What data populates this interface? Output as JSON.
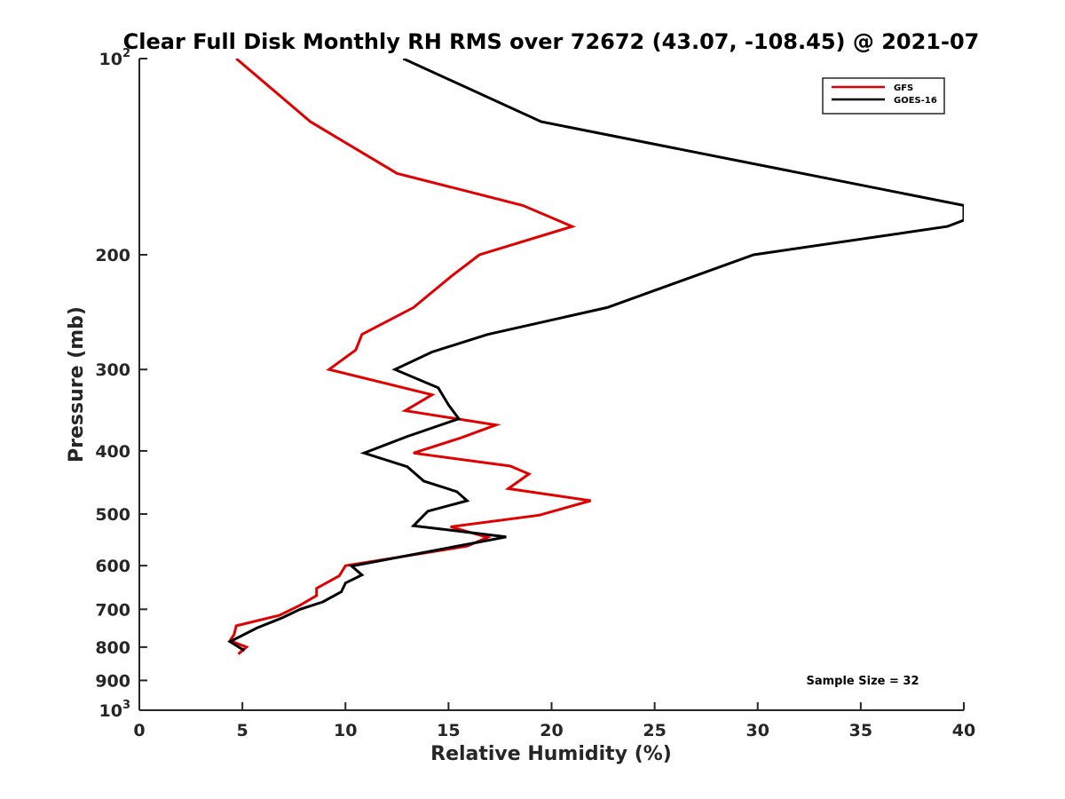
{
  "chart_data": {
    "type": "line",
    "title": "Clear Full Disk Monthly RH RMS over 72672 (43.07, -108.45) @ 2021-07",
    "xlabel": "Relative Humidity (%)",
    "ylabel": "Pressure (mb)",
    "xlim": [
      0,
      40
    ],
    "ylim": [
      100,
      1000
    ],
    "y_scale": "log",
    "y_reversed": true,
    "x_ticks": [
      0,
      5,
      10,
      15,
      20,
      25,
      30,
      35,
      40
    ],
    "x_tick_labels": [
      "0",
      "5",
      "10",
      "15",
      "20",
      "25",
      "30",
      "35",
      "40"
    ],
    "y_ticks": [
      100,
      200,
      300,
      400,
      500,
      600,
      700,
      800,
      900,
      1000
    ],
    "y_tick_labels": [
      {
        "base": "10",
        "sup": "2"
      },
      {
        "base": "200"
      },
      {
        "base": "300"
      },
      {
        "base": "400"
      },
      {
        "base": "500"
      },
      {
        "base": "600"
      },
      {
        "base": "700"
      },
      {
        "base": "800"
      },
      {
        "base": "900"
      },
      {
        "base": "10",
        "sup": "3"
      }
    ],
    "legend_position": "top-right",
    "annotation": "Sample Size = 32",
    "series": [
      {
        "name": "GFS",
        "color": "#e00000",
        "points": [
          [
            4.7,
            100
          ],
          [
            8.3,
            125
          ],
          [
            12.5,
            150
          ],
          [
            18.6,
            168
          ],
          [
            21.0,
            181
          ],
          [
            16.5,
            200
          ],
          [
            15.2,
            215
          ],
          [
            13.3,
            241
          ],
          [
            10.8,
            265
          ],
          [
            10.5,
            280
          ],
          [
            9.2,
            300
          ],
          [
            14.2,
            328
          ],
          [
            12.9,
            347
          ],
          [
            17.3,
            365
          ],
          [
            15.6,
            382
          ],
          [
            13.3,
            403
          ],
          [
            18.0,
            422
          ],
          [
            18.9,
            434
          ],
          [
            17.9,
            457
          ],
          [
            21.9,
            477
          ],
          [
            19.4,
            502
          ],
          [
            15.1,
            523
          ],
          [
            16.9,
            543
          ],
          [
            15.9,
            560
          ],
          [
            10.0,
            600
          ],
          [
            9.7,
            622
          ],
          [
            8.6,
            650
          ],
          [
            8.6,
            667
          ],
          [
            7.8,
            690
          ],
          [
            6.8,
            715
          ],
          [
            4.7,
            742
          ],
          [
            4.6,
            765
          ],
          [
            4.4,
            782
          ],
          [
            5.2,
            800
          ],
          [
            4.8,
            820
          ]
        ]
      },
      {
        "name": "GOES-16",
        "color": "#000000",
        "points": [
          [
            12.8,
            100
          ],
          [
            19.5,
            125
          ],
          [
            40.0,
            168
          ],
          [
            40.0,
            177
          ],
          [
            39.2,
            181
          ],
          [
            29.8,
            200
          ],
          [
            22.7,
            241
          ],
          [
            16.9,
            265
          ],
          [
            14.2,
            282
          ],
          [
            12.4,
            300
          ],
          [
            14.5,
            320
          ],
          [
            15.0,
            340
          ],
          [
            15.5,
            357
          ],
          [
            13.0,
            380
          ],
          [
            10.9,
            403
          ],
          [
            13.0,
            423
          ],
          [
            13.8,
            445
          ],
          [
            15.4,
            462
          ],
          [
            15.9,
            477
          ],
          [
            14.0,
            495
          ],
          [
            13.3,
            521
          ],
          [
            17.8,
            542
          ],
          [
            10.3,
            601
          ],
          [
            10.8,
            620
          ],
          [
            10.0,
            638
          ],
          [
            9.8,
            658
          ],
          [
            8.9,
            682
          ],
          [
            7.8,
            700
          ],
          [
            6.9,
            722
          ],
          [
            5.7,
            748
          ],
          [
            4.4,
            785
          ],
          [
            5.1,
            810
          ]
        ]
      }
    ]
  }
}
